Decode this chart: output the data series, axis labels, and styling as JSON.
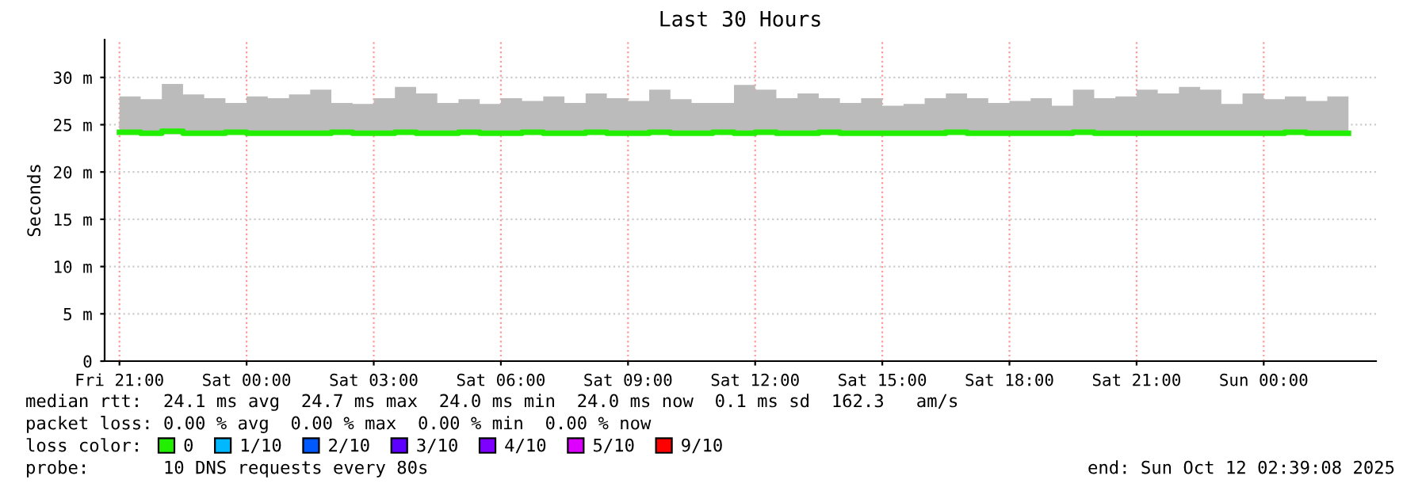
{
  "chart_data": {
    "type": "step",
    "title": "Last 30 Hours",
    "ylabel": "Seconds",
    "legend_title": "loss color:",
    "legend": "bottom",
    "grid": true,
    "xlim": [
      "2025-10-10T20:39",
      "2025-10-12T02:39"
    ],
    "ylim": [
      0,
      34
    ],
    "xticks": [
      {
        "value": "2025-10-10T21:00",
        "label": "Fri 21:00"
      },
      {
        "value": "2025-10-11T00:00",
        "label": "Sat 00:00"
      },
      {
        "value": "2025-10-11T03:00",
        "label": "Sat 03:00"
      },
      {
        "value": "2025-10-11T06:00",
        "label": "Sat 06:00"
      },
      {
        "value": "2025-10-11T09:00",
        "label": "Sat 09:00"
      },
      {
        "value": "2025-10-11T12:00",
        "label": "Sat 12:00"
      },
      {
        "value": "2025-10-11T15:00",
        "label": "Sat 15:00"
      },
      {
        "value": "2025-10-11T18:00",
        "label": "Sat 18:00"
      },
      {
        "value": "2025-10-11T21:00",
        "label": "Sat 21:00"
      },
      {
        "value": "2025-10-12T00:00",
        "label": "Sun 00:00"
      }
    ],
    "yticks": [
      {
        "value": 0,
        "label": "0"
      },
      {
        "value": 5,
        "label": "5 m"
      },
      {
        "value": 10,
        "label": "10 m"
      },
      {
        "value": 15,
        "label": "15 m"
      },
      {
        "value": 20,
        "label": "20 m"
      },
      {
        "value": 25,
        "label": "25 m"
      },
      {
        "value": 30,
        "label": "30 m"
      }
    ],
    "x": [
      "2025-10-10T21:00",
      "2025-10-10T21:30",
      "2025-10-10T22:00",
      "2025-10-10T22:30",
      "2025-10-10T23:00",
      "2025-10-10T23:30",
      "2025-10-11T00:00",
      "2025-10-11T00:30",
      "2025-10-11T01:00",
      "2025-10-11T01:30",
      "2025-10-11T02:00",
      "2025-10-11T02:30",
      "2025-10-11T03:00",
      "2025-10-11T03:30",
      "2025-10-11T04:00",
      "2025-10-11T04:30",
      "2025-10-11T05:00",
      "2025-10-11T05:30",
      "2025-10-11T06:00",
      "2025-10-11T06:30",
      "2025-10-11T07:00",
      "2025-10-11T07:30",
      "2025-10-11T08:00",
      "2025-10-11T08:30",
      "2025-10-11T09:00",
      "2025-10-11T09:30",
      "2025-10-11T10:00",
      "2025-10-11T10:30",
      "2025-10-11T11:00",
      "2025-10-11T11:30",
      "2025-10-11T12:00",
      "2025-10-11T12:30",
      "2025-10-11T13:00",
      "2025-10-11T13:30",
      "2025-10-11T14:00",
      "2025-10-11T14:30",
      "2025-10-11T15:00",
      "2025-10-11T15:30",
      "2025-10-11T16:00",
      "2025-10-11T16:30",
      "2025-10-11T17:00",
      "2025-10-11T17:30",
      "2025-10-11T18:00",
      "2025-10-11T18:30",
      "2025-10-11T19:00",
      "2025-10-11T19:30",
      "2025-10-11T20:00",
      "2025-10-11T20:30",
      "2025-10-11T21:00",
      "2025-10-11T21:30",
      "2025-10-11T22:00",
      "2025-10-11T22:30",
      "2025-10-11T23:00",
      "2025-10-11T23:30",
      "2025-10-12T00:00",
      "2025-10-12T00:30",
      "2025-10-12T01:00",
      "2025-10-12T01:30",
      "2025-10-12T02:00"
    ],
    "series": [
      {
        "name": "0",
        "color": "#22ee00",
        "values": [
          24.2,
          24.1,
          24.3,
          24.1,
          24.1,
          24.2,
          24.1,
          24.1,
          24.1,
          24.1,
          24.2,
          24.1,
          24.1,
          24.2,
          24.1,
          24.1,
          24.2,
          24.1,
          24.1,
          24.2,
          24.1,
          24.1,
          24.2,
          24.1,
          24.1,
          24.2,
          24.1,
          24.1,
          24.2,
          24.1,
          24.2,
          24.1,
          24.1,
          24.2,
          24.1,
          24.1,
          24.1,
          24.1,
          24.1,
          24.2,
          24.1,
          24.1,
          24.1,
          24.1,
          24.1,
          24.2,
          24.1,
          24.1,
          24.1,
          24.1,
          24.1,
          24.1,
          24.1,
          24.1,
          24.1,
          24.2,
          24.1,
          24.1,
          24.1
        ],
        "lower": [
          24.0,
          24.0,
          24.0,
          24.0,
          24.0,
          24.0,
          24.0,
          24.0,
          24.0,
          24.0,
          24.0,
          24.0,
          24.0,
          24.0,
          24.0,
          24.0,
          24.0,
          24.0,
          24.0,
          24.0,
          24.0,
          24.0,
          24.0,
          24.0,
          24.0,
          24.0,
          24.0,
          24.0,
          24.0,
          24.0,
          24.0,
          24.0,
          24.0,
          24.0,
          24.0,
          24.0,
          24.0,
          24.0,
          24.0,
          24.0,
          24.0,
          24.0,
          24.0,
          24.0,
          24.0,
          24.0,
          24.0,
          24.0,
          24.0,
          24.0,
          24.0,
          24.0,
          24.0,
          24.0,
          24.0,
          24.0,
          24.0,
          24.0,
          24.0
        ],
        "upper": [
          28.0,
          27.7,
          29.3,
          28.2,
          27.8,
          27.3,
          28.0,
          27.8,
          28.2,
          28.7,
          27.3,
          27.2,
          27.8,
          29.0,
          28.3,
          27.3,
          27.7,
          27.2,
          27.8,
          27.5,
          28.0,
          27.3,
          28.3,
          27.8,
          27.5,
          28.7,
          27.7,
          27.3,
          27.3,
          29.2,
          28.7,
          27.8,
          28.3,
          27.8,
          27.3,
          27.8,
          27.0,
          27.2,
          27.8,
          28.3,
          27.8,
          27.3,
          27.5,
          27.8,
          27.0,
          28.7,
          27.8,
          28.0,
          28.7,
          28.3,
          29.0,
          28.7,
          27.2,
          28.3,
          27.7,
          28.0,
          27.5,
          28.0,
          27.7
        ]
      },
      {
        "name": "1/10",
        "color": "#00b8ff",
        "values": [
          null,
          null,
          null,
          null,
          null,
          null,
          null,
          null,
          null,
          null,
          null,
          null,
          null,
          null,
          null,
          null,
          null,
          null,
          null,
          null,
          null,
          null,
          null,
          null,
          null,
          null,
          null,
          null,
          null,
          null,
          null,
          null,
          null,
          null,
          null,
          null,
          null,
          null,
          null,
          null,
          null,
          null,
          null,
          null,
          null,
          null,
          null,
          null,
          null,
          null,
          null,
          null,
          null,
          null,
          null,
          null,
          null,
          null,
          null
        ]
      },
      {
        "name": "2/10",
        "color": "#0059ff",
        "values": [
          null,
          null,
          null,
          null,
          null,
          null,
          null,
          null,
          null,
          null,
          null,
          null,
          null,
          null,
          null,
          null,
          null,
          null,
          null,
          null,
          null,
          null,
          null,
          null,
          null,
          null,
          null,
          null,
          null,
          null,
          null,
          null,
          null,
          null,
          null,
          null,
          null,
          null,
          null,
          null,
          null,
          null,
          null,
          null,
          null,
          null,
          null,
          null,
          null,
          null,
          null,
          null,
          null,
          null,
          null,
          null,
          null,
          null,
          null
        ]
      },
      {
        "name": "3/10",
        "color": "#5e00ff",
        "values": [
          null,
          null,
          null,
          null,
          null,
          null,
          null,
          null,
          null,
          null,
          null,
          null,
          null,
          null,
          null,
          null,
          null,
          null,
          null,
          null,
          null,
          null,
          null,
          null,
          null,
          null,
          null,
          null,
          null,
          null,
          null,
          null,
          null,
          null,
          null,
          null,
          null,
          null,
          null,
          null,
          null,
          null,
          null,
          null,
          null,
          null,
          null,
          null,
          null,
          null,
          null,
          null,
          null,
          null,
          null,
          null,
          null,
          null,
          null
        ]
      },
      {
        "name": "4/10",
        "color": "#7e00ff",
        "values": [
          null,
          null,
          null,
          null,
          null,
          null,
          null,
          null,
          null,
          null,
          null,
          null,
          null,
          null,
          null,
          null,
          null,
          null,
          null,
          null,
          null,
          null,
          null,
          null,
          null,
          null,
          null,
          null,
          null,
          null,
          null,
          null,
          null,
          null,
          null,
          null,
          null,
          null,
          null,
          null,
          null,
          null,
          null,
          null,
          null,
          null,
          null,
          null,
          null,
          null,
          null,
          null,
          null,
          null,
          null,
          null,
          null,
          null,
          null
        ]
      },
      {
        "name": "5/10",
        "color": "#dd00ff",
        "values": [
          null,
          null,
          null,
          null,
          null,
          null,
          null,
          null,
          null,
          null,
          null,
          null,
          null,
          null,
          null,
          null,
          null,
          null,
          null,
          null,
          null,
          null,
          null,
          null,
          null,
          null,
          null,
          null,
          null,
          null,
          null,
          null,
          null,
          null,
          null,
          null,
          null,
          null,
          null,
          null,
          null,
          null,
          null,
          null,
          null,
          null,
          null,
          null,
          null,
          null,
          null,
          null,
          null,
          null,
          null,
          null,
          null,
          null,
          null
        ]
      },
      {
        "name": "9/10",
        "color": "#ff0000",
        "values": [
          null,
          null,
          null,
          null,
          null,
          null,
          null,
          null,
          null,
          null,
          null,
          null,
          null,
          null,
          null,
          null,
          null,
          null,
          null,
          null,
          null,
          null,
          null,
          null,
          null,
          null,
          null,
          null,
          null,
          null,
          null,
          null,
          null,
          null,
          null,
          null,
          null,
          null,
          null,
          null,
          null,
          null,
          null,
          null,
          null,
          null,
          null,
          null,
          null,
          null,
          null,
          null,
          null,
          null,
          null,
          null,
          null,
          null,
          null
        ]
      }
    ],
    "annotations": [
      "median rtt:  24.1 ms avg  24.7 ms max  24.0 ms min  24.0 ms now  0.1 ms sd  162.3   am/s",
      "packet loss: 0.00 % avg  0.00 % max  0.00 % min  0.00 % now",
      "probe:       10 DNS requests every 80s",
      "end: Sun Oct 12 02:39:08 2025"
    ]
  }
}
